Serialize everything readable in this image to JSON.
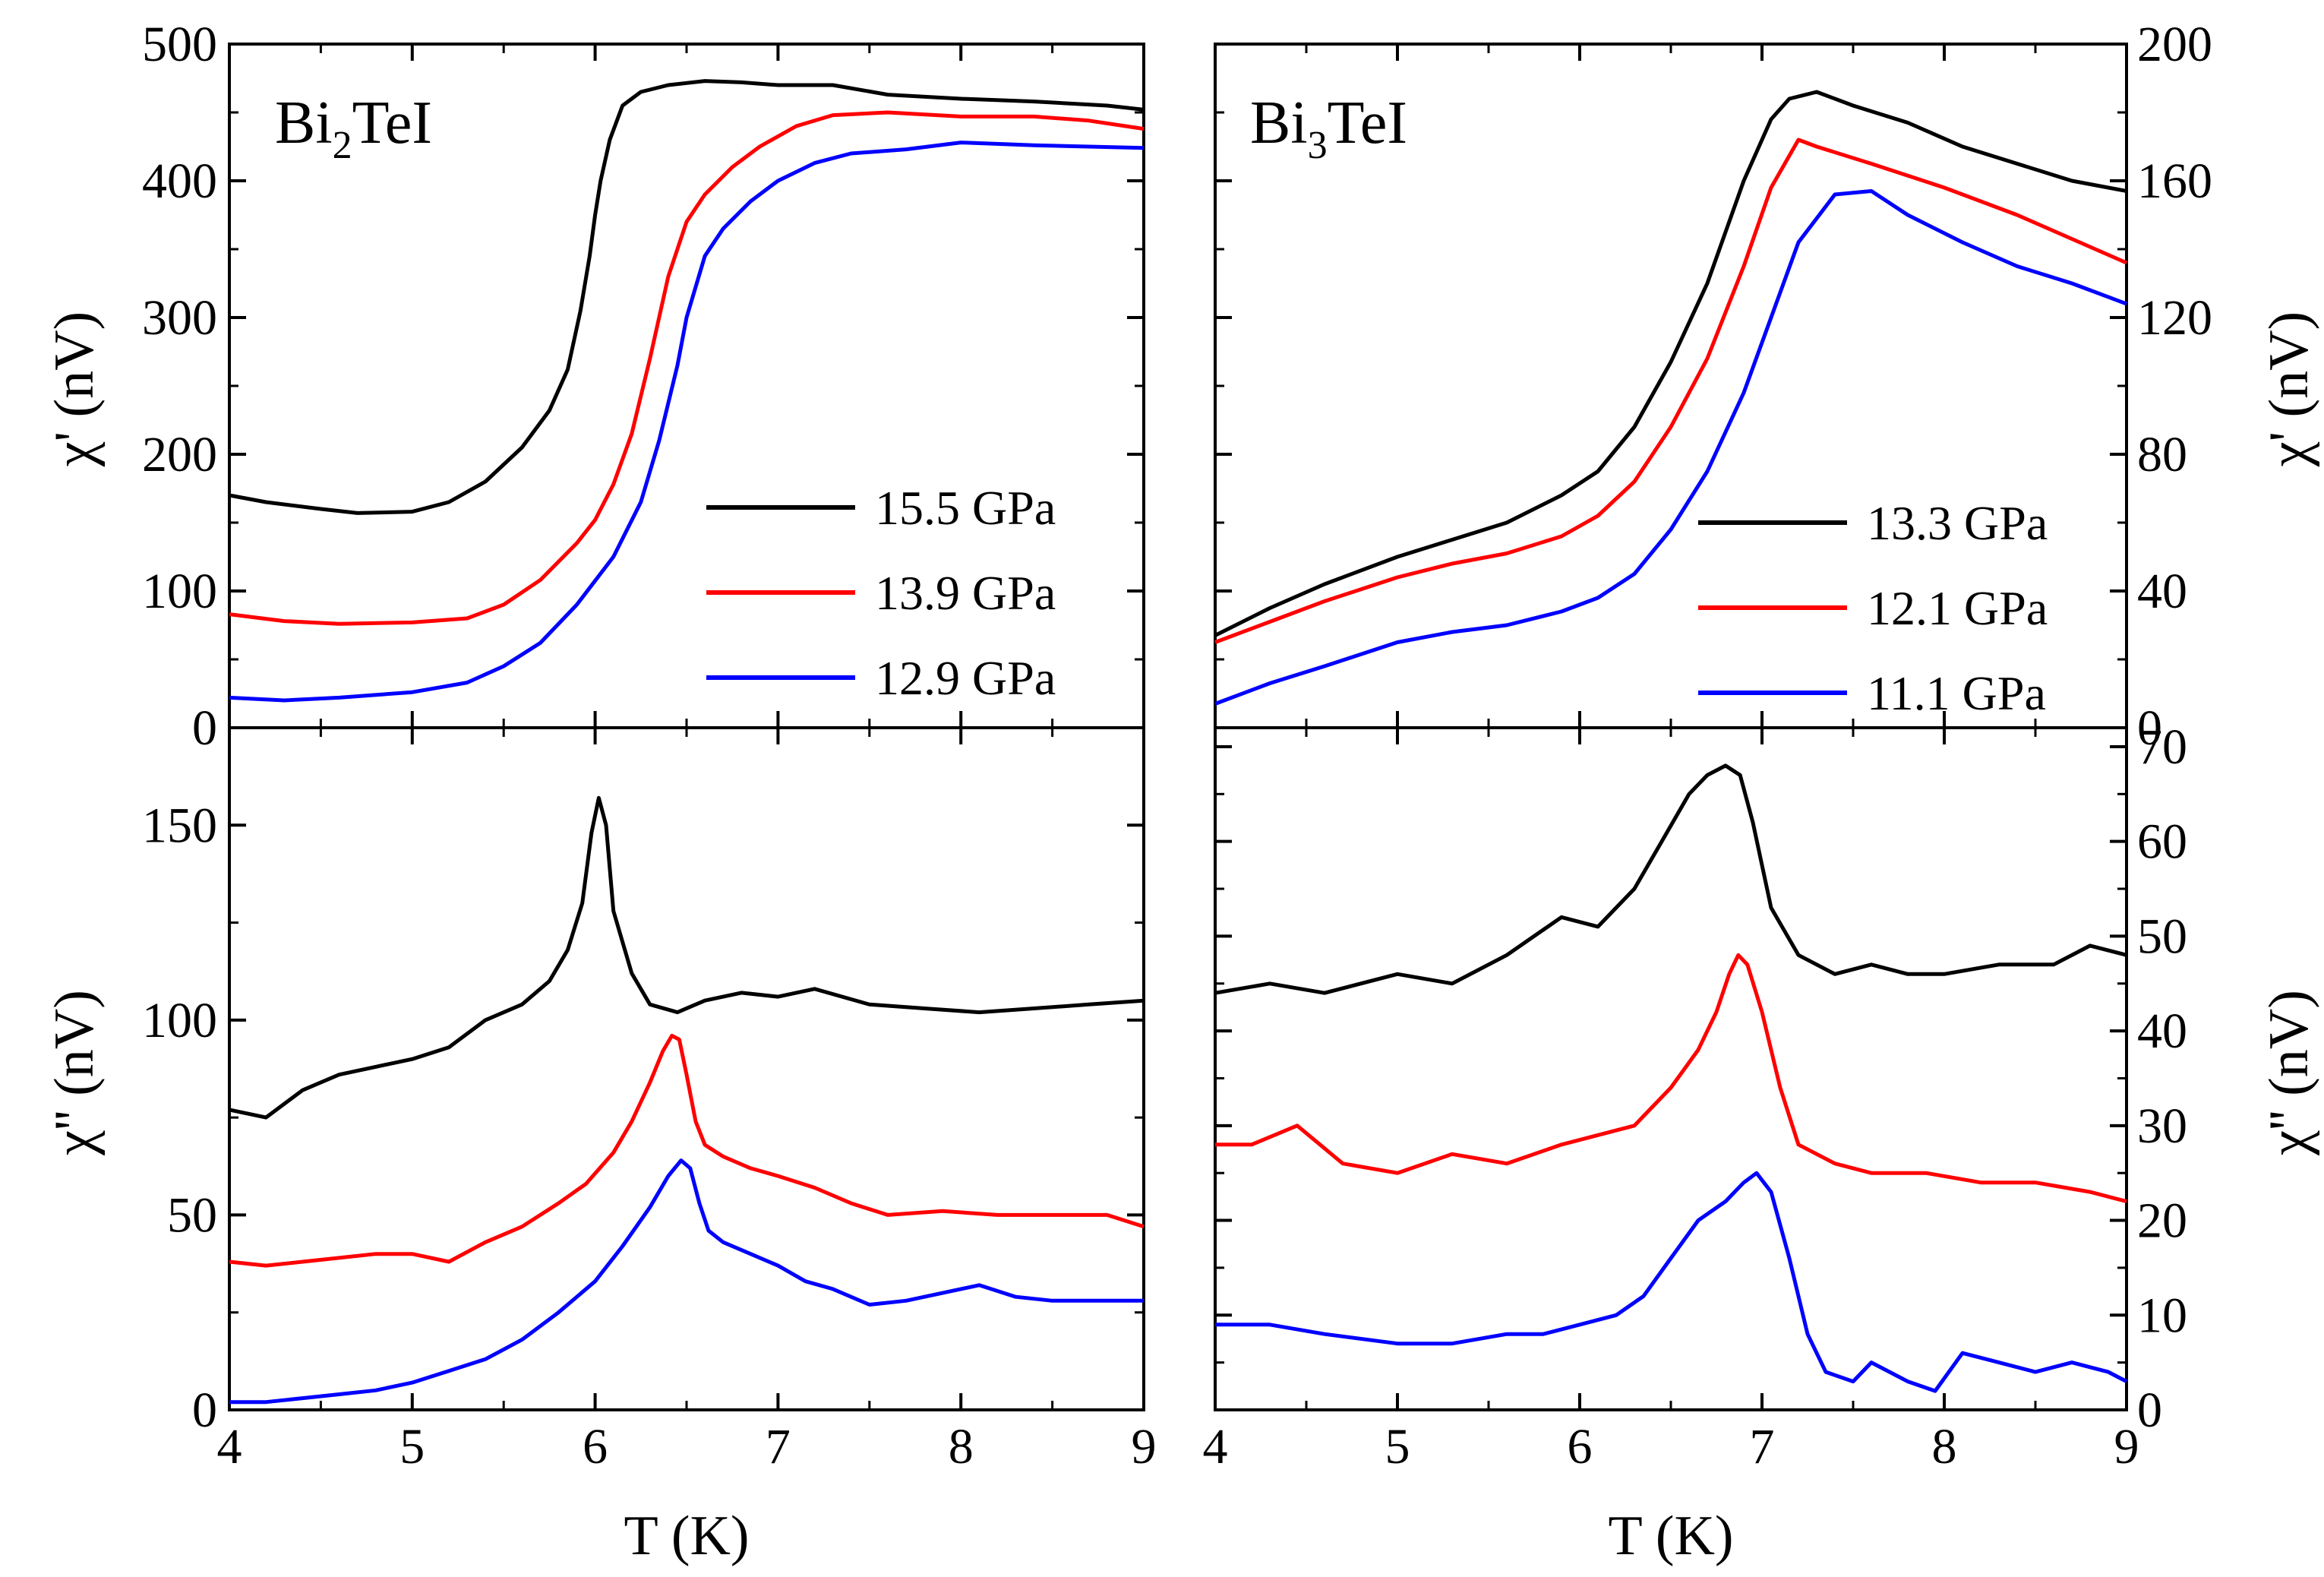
{
  "figure": {
    "xlabel_left": "T (K)",
    "xlabel_right": "T (K)",
    "x_ticks": [
      "4",
      "5",
      "6",
      "7",
      "8",
      "9"
    ]
  },
  "chart_data": [
    {
      "id": "top_left",
      "type": "line",
      "compound": {
        "base1": "Bi",
        "sub": "2",
        "base2": "TeI"
      },
      "xlabel": "",
      "ylabel": "χ' (nV)",
      "xlim": [
        4,
        9
      ],
      "ylim": [
        0,
        500
      ],
      "y_ticks": [
        "0",
        "100",
        "200",
        "300",
        "400",
        "500"
      ],
      "legend_position": "bottom-right",
      "series": [
        {
          "name": "15.5 GPa",
          "color": "#000000",
          "x": [
            4.0,
            4.2,
            4.5,
            4.7,
            5.0,
            5.2,
            5.4,
            5.6,
            5.75,
            5.85,
            5.92,
            5.97,
            6.0,
            6.03,
            6.08,
            6.15,
            6.25,
            6.4,
            6.6,
            6.8,
            7.0,
            7.3,
            7.6,
            8.0,
            8.4,
            8.8,
            9.0
          ],
          "y": [
            170,
            165,
            160,
            157,
            158,
            165,
            180,
            205,
            232,
            262,
            305,
            345,
            375,
            400,
            430,
            455,
            465,
            470,
            473,
            472,
            470,
            470,
            463,
            460,
            458,
            455,
            452
          ]
        },
        {
          "name": "13.9 GPa",
          "color": "#ff0000",
          "x": [
            4.0,
            4.3,
            4.6,
            5.0,
            5.3,
            5.5,
            5.7,
            5.9,
            6.0,
            6.1,
            6.2,
            6.3,
            6.4,
            6.5,
            6.6,
            6.75,
            6.9,
            7.1,
            7.3,
            7.6,
            8.0,
            8.4,
            8.7,
            9.0
          ],
          "y": [
            83,
            78,
            76,
            77,
            80,
            90,
            108,
            135,
            152,
            178,
            215,
            270,
            330,
            370,
            390,
            410,
            425,
            440,
            448,
            450,
            447,
            447,
            444,
            438
          ]
        },
        {
          "name": "12.9 GPa",
          "color": "#0000ff",
          "x": [
            4.0,
            4.3,
            4.6,
            5.0,
            5.3,
            5.5,
            5.7,
            5.9,
            6.1,
            6.25,
            6.35,
            6.45,
            6.5,
            6.6,
            6.7,
            6.85,
            7.0,
            7.2,
            7.4,
            7.7,
            8.0,
            8.4,
            8.7,
            9.0
          ],
          "y": [
            22,
            20,
            22,
            26,
            33,
            45,
            62,
            90,
            125,
            165,
            210,
            265,
            300,
            345,
            365,
            385,
            400,
            413,
            420,
            423,
            428,
            426,
            425,
            424
          ]
        }
      ]
    },
    {
      "id": "top_right",
      "type": "line",
      "compound": {
        "base1": "Bi",
        "sub": "3",
        "base2": "TeI"
      },
      "xlabel": "",
      "ylabel": "χ' (nV)",
      "xlim": [
        4,
        9
      ],
      "ylim": [
        0,
        200
      ],
      "y_ticks": [
        "0",
        "40",
        "80",
        "120",
        "160",
        "200"
      ],
      "legend_position": "bottom-right",
      "series": [
        {
          "name": "13.3 GPa",
          "color": "#000000",
          "x": [
            4.0,
            4.3,
            4.6,
            5.0,
            5.3,
            5.6,
            5.9,
            6.1,
            6.3,
            6.5,
            6.7,
            6.9,
            7.05,
            7.15,
            7.3,
            7.5,
            7.8,
            8.1,
            8.4,
            8.7,
            9.0
          ],
          "y": [
            27,
            35,
            42,
            50,
            55,
            60,
            68,
            75,
            88,
            107,
            130,
            160,
            178,
            184,
            186,
            182,
            177,
            170,
            165,
            160,
            157
          ]
        },
        {
          "name": "12.1 GPa",
          "color": "#ff0000",
          "x": [
            4.0,
            4.3,
            4.6,
            5.0,
            5.3,
            5.6,
            5.9,
            6.1,
            6.3,
            6.5,
            6.7,
            6.9,
            7.05,
            7.2,
            7.3,
            7.6,
            8.0,
            8.4,
            8.7,
            9.0
          ],
          "y": [
            25,
            31,
            37,
            44,
            48,
            51,
            56,
            62,
            72,
            88,
            108,
            135,
            158,
            172,
            170,
            165,
            158,
            150,
            143,
            136
          ]
        },
        {
          "name": "11.1 GPa",
          "color": "#0000ff",
          "x": [
            4.0,
            4.3,
            4.6,
            5.0,
            5.3,
            5.6,
            5.9,
            6.1,
            6.3,
            6.5,
            6.7,
            6.9,
            7.05,
            7.2,
            7.4,
            7.6,
            7.8,
            8.1,
            8.4,
            8.7,
            9.0
          ],
          "y": [
            7,
            13,
            18,
            25,
            28,
            30,
            34,
            38,
            45,
            58,
            75,
            98,
            120,
            142,
            156,
            157,
            150,
            142,
            135,
            130,
            124
          ]
        }
      ]
    },
    {
      "id": "bottom_left",
      "type": "line",
      "xlabel": "T (K)",
      "ylabel": "χ'' (nV)",
      "xlim": [
        4,
        9
      ],
      "ylim": [
        0,
        175
      ],
      "y_ticks": [
        "0",
        "50",
        "100",
        "150"
      ],
      "series": [
        {
          "name": "15.5 GPa",
          "color": "#000000",
          "x": [
            4.0,
            4.2,
            4.4,
            4.6,
            4.8,
            5.0,
            5.2,
            5.4,
            5.6,
            5.75,
            5.85,
            5.93,
            5.98,
            6.02,
            6.06,
            6.1,
            6.2,
            6.3,
            6.45,
            6.6,
            6.8,
            7.0,
            7.2,
            7.5,
            7.8,
            8.1,
            8.4,
            8.7,
            9.0
          ],
          "y": [
            77,
            75,
            82,
            86,
            88,
            90,
            93,
            100,
            104,
            110,
            118,
            130,
            148,
            157,
            150,
            128,
            112,
            104,
            102,
            105,
            107,
            106,
            108,
            104,
            103,
            102,
            103,
            104,
            105
          ]
        },
        {
          "name": "13.9 GPa",
          "color": "#ff0000",
          "x": [
            4.0,
            4.2,
            4.4,
            4.6,
            4.8,
            5.0,
            5.2,
            5.4,
            5.6,
            5.8,
            5.95,
            6.1,
            6.2,
            6.3,
            6.37,
            6.42,
            6.46,
            6.5,
            6.55,
            6.6,
            6.7,
            6.85,
            7.0,
            7.2,
            7.4,
            7.6,
            7.9,
            8.2,
            8.5,
            8.8,
            9.0
          ],
          "y": [
            38,
            37,
            38,
            39,
            40,
            40,
            38,
            43,
            47,
            53,
            58,
            66,
            74,
            84,
            92,
            96,
            95,
            86,
            74,
            68,
            65,
            62,
            60,
            57,
            53,
            50,
            51,
            50,
            50,
            50,
            47
          ]
        },
        {
          "name": "12.9 GPa",
          "color": "#0000ff",
          "x": [
            4.0,
            4.2,
            4.4,
            4.6,
            4.8,
            5.0,
            5.2,
            5.4,
            5.6,
            5.8,
            6.0,
            6.15,
            6.3,
            6.4,
            6.47,
            6.52,
            6.57,
            6.62,
            6.7,
            6.85,
            7.0,
            7.15,
            7.3,
            7.5,
            7.7,
            7.9,
            8.1,
            8.3,
            8.5,
            8.7,
            9.0
          ],
          "y": [
            2,
            2,
            3,
            4,
            5,
            7,
            10,
            13,
            18,
            25,
            33,
            42,
            52,
            60,
            64,
            62,
            53,
            46,
            43,
            40,
            37,
            33,
            31,
            27,
            28,
            30,
            32,
            29,
            28,
            28,
            28
          ]
        }
      ]
    },
    {
      "id": "bottom_right",
      "type": "line",
      "xlabel": "T (K)",
      "ylabel": "χ'' (nV)",
      "xlim": [
        4,
        9
      ],
      "ylim": [
        0,
        72
      ],
      "y_ticks": [
        "0",
        "10",
        "20",
        "30",
        "40",
        "50",
        "60",
        "70"
      ],
      "series": [
        {
          "name": "13.3 GPa",
          "color": "#000000",
          "x": [
            4.0,
            4.3,
            4.6,
            5.0,
            5.3,
            5.6,
            5.9,
            6.1,
            6.3,
            6.45,
            6.6,
            6.7,
            6.8,
            6.88,
            6.95,
            7.05,
            7.2,
            7.4,
            7.6,
            7.8,
            8.0,
            8.3,
            8.6,
            8.8,
            9.0
          ],
          "y": [
            44,
            45,
            44,
            46,
            45,
            48,
            52,
            51,
            55,
            60,
            65,
            67,
            68,
            67,
            62,
            53,
            48,
            46,
            47,
            46,
            46,
            47,
            47,
            49,
            48
          ]
        },
        {
          "name": "12.1 GPa",
          "color": "#ff0000",
          "x": [
            4.0,
            4.2,
            4.45,
            4.7,
            5.0,
            5.3,
            5.6,
            5.9,
            6.1,
            6.3,
            6.5,
            6.65,
            6.75,
            6.82,
            6.87,
            6.92,
            7.0,
            7.1,
            7.2,
            7.4,
            7.6,
            7.9,
            8.2,
            8.5,
            8.8,
            9.0
          ],
          "y": [
            28,
            28,
            30,
            26,
            25,
            27,
            26,
            28,
            29,
            30,
            34,
            38,
            42,
            46,
            48,
            47,
            42,
            34,
            28,
            26,
            25,
            25,
            24,
            24,
            23,
            22
          ]
        },
        {
          "name": "11.1 GPa",
          "color": "#0000ff",
          "x": [
            4.0,
            4.3,
            4.6,
            5.0,
            5.3,
            5.6,
            5.8,
            6.0,
            6.2,
            6.35,
            6.5,
            6.65,
            6.8,
            6.9,
            6.97,
            7.05,
            7.15,
            7.25,
            7.35,
            7.5,
            7.6,
            7.8,
            7.95,
            8.1,
            8.3,
            8.5,
            8.7,
            8.9,
            9.0
          ],
          "y": [
            9,
            9,
            8,
            7,
            7,
            8,
            8,
            9,
            10,
            12,
            16,
            20,
            22,
            24,
            25,
            23,
            16,
            8,
            4,
            3,
            5,
            3,
            2,
            6,
            5,
            4,
            5,
            4,
            3
          ]
        }
      ]
    }
  ]
}
